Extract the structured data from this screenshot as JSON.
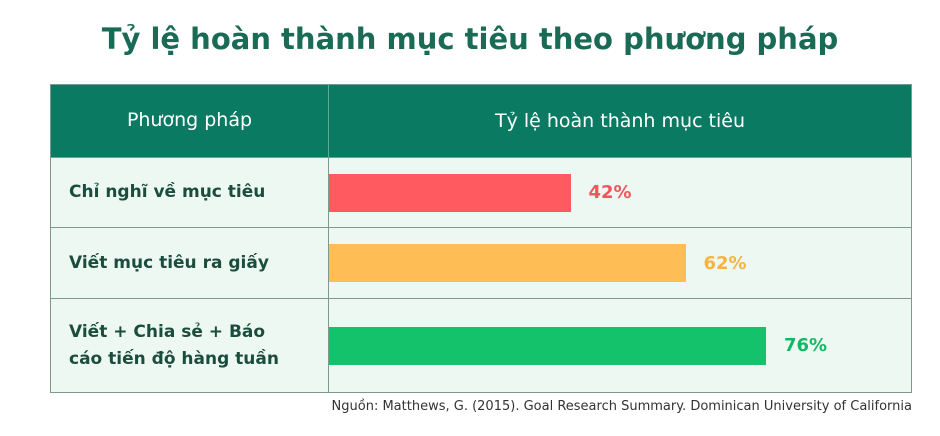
{
  "chart_data": {
    "type": "bar",
    "title": "Tỷ lệ hoàn thành mục tiêu theo phương pháp",
    "category_header": "Phương pháp",
    "value_header": "Tỷ lệ hoàn thành mục tiêu",
    "categories": [
      "Chỉ nghĩ về mục tiêu",
      "Viết mục tiêu ra giấy",
      "Viết + Chia sẻ + Báo cáo tiến độ hàng tuần"
    ],
    "values": [
      42,
      62,
      76
    ],
    "value_labels": [
      "42%",
      "62%",
      "76%"
    ],
    "colors": [
      "#ff5a5f",
      "#ffbe55",
      "#14c26b"
    ],
    "label_colors": [
      "#f0555a",
      "#f5b440",
      "#12b865"
    ],
    "source": "Nguồn: Matthews, G. (2015). Goal Research Summary. Dominican University of California"
  }
}
